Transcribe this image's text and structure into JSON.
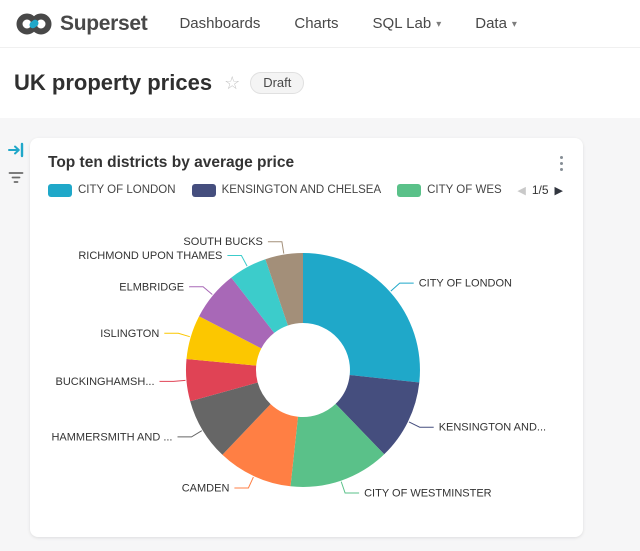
{
  "header": {
    "brand": "Superset",
    "caret_glyph": "▾",
    "nav": [
      {
        "label": "Dashboards",
        "caret": false
      },
      {
        "label": "Charts",
        "caret": false
      },
      {
        "label": "SQL Lab",
        "caret": true
      },
      {
        "label": "Data",
        "caret": true
      }
    ]
  },
  "dashboard": {
    "title": "UK property prices",
    "favorite_glyph": "☆",
    "status_badge": "Draft"
  },
  "chart_card": {
    "title": "Top ten districts by average price",
    "legend": {
      "visible_items": [
        {
          "label": "CITY OF LONDON",
          "color": "#1FA8C9"
        },
        {
          "label": "KENSINGTON AND CHELSEA",
          "color": "#454E7E"
        },
        {
          "label": "CITY OF WES",
          "color": "#5AC189"
        }
      ],
      "pager": {
        "prev_glyph": "◀",
        "page_indicator": "1/5",
        "next_glyph": "▶"
      }
    }
  },
  "chart_data": {
    "type": "pie",
    "donut": true,
    "title": "Top ten districts by average price",
    "legend_position": "top",
    "categories": [
      "CITY OF LONDON",
      "KENSINGTON AND CHELSEA",
      "CITY OF WESTMINSTER",
      "CAMDEN",
      "HAMMERSMITH AND ...",
      "BUCKINGHAMSH...",
      "ISLINGTON",
      "ELMBRIDGE",
      "RICHMOND UPON THAMES",
      "SOUTH BUCKS"
    ],
    "values": [
      26.7,
      11.1,
      13.9,
      10.4,
      8.6,
      5.8,
      6.1,
      6.9,
      5.3,
      5.2
    ],
    "value_unit": "percent_of_total",
    "colors": [
      "#1FA8C9",
      "#454E7E",
      "#5AC189",
      "#FF7F44",
      "#666666",
      "#E04355",
      "#FCC700",
      "#A868B7",
      "#3CCCCB",
      "#A38F79"
    ],
    "slice_labels": [
      "CITY OF LONDON",
      "KENSINGTON AND...",
      "CITY OF WESTMINSTER",
      "CAMDEN",
      "HAMMERSMITH AND ...",
      "BUCKINGHAMSH...",
      "ISLINGTON",
      "ELMBRIDGE",
      "RICHMOND UPON THAMES",
      "SOUTH BUCKS"
    ]
  },
  "ui_colors": {
    "accent": "#20A7C9",
    "text": "#484848",
    "page_background": "#F6F6F7",
    "label_text": "#333333"
  }
}
